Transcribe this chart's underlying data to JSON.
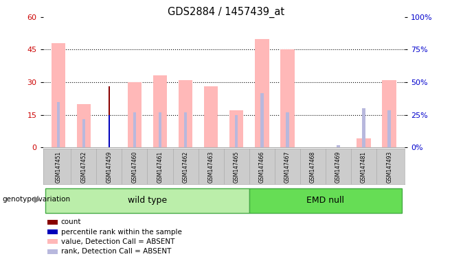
{
  "title": "GDS2884 / 1457439_at",
  "samples": [
    "GSM147451",
    "GSM147452",
    "GSM147459",
    "GSM147460",
    "GSM147461",
    "GSM147462",
    "GSM147463",
    "GSM147465",
    "GSM147466",
    "GSM147467",
    "GSM147468",
    "GSM147469",
    "GSM147481",
    "GSM147493"
  ],
  "wild_type_count": 8,
  "emd_null_count": 6,
  "count": [
    0,
    0,
    28,
    0,
    0,
    0,
    0,
    0,
    0,
    0,
    0,
    0,
    0,
    0
  ],
  "percentile_rank": [
    0,
    0,
    15,
    0,
    0,
    0,
    0,
    0,
    0,
    0,
    0,
    0,
    0,
    0
  ],
  "value_absent": [
    48,
    20,
    0,
    30,
    33,
    31,
    28,
    17,
    50,
    45,
    0,
    0,
    4,
    31
  ],
  "rank_absent": [
    21,
    13,
    0,
    16,
    16,
    16,
    0,
    15,
    25,
    16,
    0,
    1,
    18,
    17
  ],
  "ylim_left": [
    0,
    60
  ],
  "ylim_right": [
    0,
    100
  ],
  "yticks_left": [
    0,
    15,
    30,
    45,
    60
  ],
  "yticks_right": [
    0,
    25,
    50,
    75,
    100
  ],
  "ylabel_left_color": "#cc0000",
  "ylabel_right_color": "#0000cc",
  "bar_color_count": "#880000",
  "bar_color_rank": "#0000bb",
  "bar_color_value_absent": "#ffb8b8",
  "bar_color_rank_absent": "#b8b8dd",
  "bg_color": "#ffffff",
  "tick_area_color": "#cccccc",
  "wild_type_color": "#aaeea a",
  "emd_null_color": "#66dd66",
  "legend_items": [
    {
      "label": "count",
      "color": "#880000"
    },
    {
      "label": "percentile rank within the sample",
      "color": "#0000bb"
    },
    {
      "label": "value, Detection Call = ABSENT",
      "color": "#ffb8b8"
    },
    {
      "label": "rank, Detection Call = ABSENT",
      "color": "#b8b8dd"
    }
  ]
}
